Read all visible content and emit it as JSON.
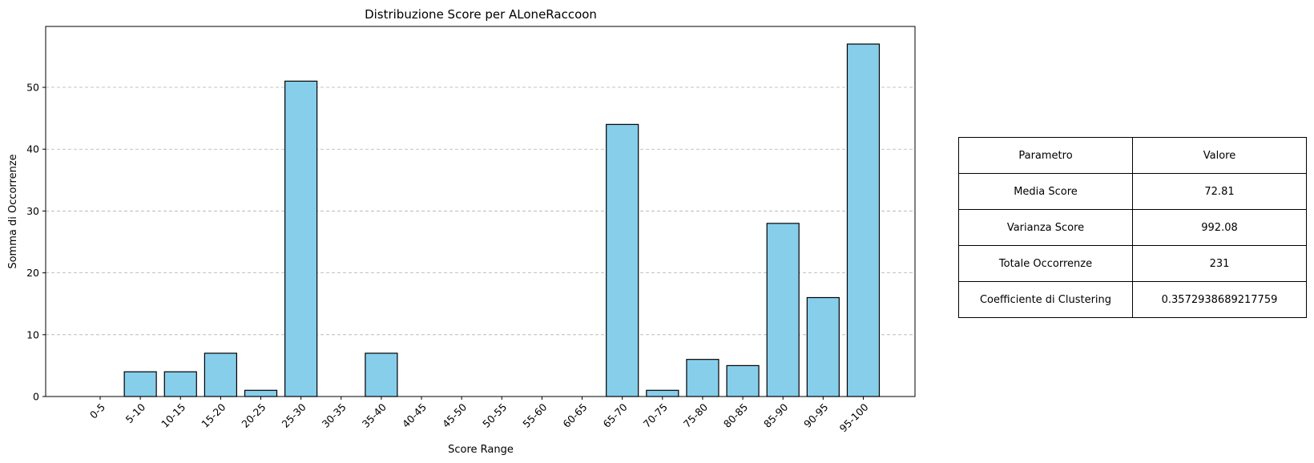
{
  "chart_data": {
    "type": "bar",
    "title": "Distribuzione Score per ALoneRaccoon",
    "xlabel": "Score Range",
    "ylabel": "Somma di Occorrenze",
    "categories": [
      "0-5",
      "5-10",
      "10-15",
      "15-20",
      "20-25",
      "25-30",
      "30-35",
      "35-40",
      "40-45",
      "45-50",
      "50-55",
      "55-60",
      "60-65",
      "65-70",
      "70-75",
      "75-80",
      "80-85",
      "85-90",
      "90-95",
      "95-100"
    ],
    "values": [
      0,
      4,
      4,
      7,
      1,
      51,
      0,
      7,
      0,
      0,
      0,
      0,
      0,
      44,
      1,
      6,
      5,
      28,
      16,
      57
    ],
    "ylim": [
      0,
      59.85
    ],
    "yticks": [
      0,
      10,
      20,
      30,
      40,
      50
    ],
    "grid": "y-dashed",
    "bar_color": "#87ceeb",
    "edge_color": "#000000"
  },
  "table": {
    "header": [
      "Parametro",
      "Valore"
    ],
    "rows": [
      [
        "Media Score",
        "72.81"
      ],
      [
        "Varianza Score",
        "992.08"
      ],
      [
        "Totale Occorrenze",
        "231"
      ],
      [
        "Coefficiente di Clustering",
        "0.3572938689217759"
      ]
    ]
  }
}
